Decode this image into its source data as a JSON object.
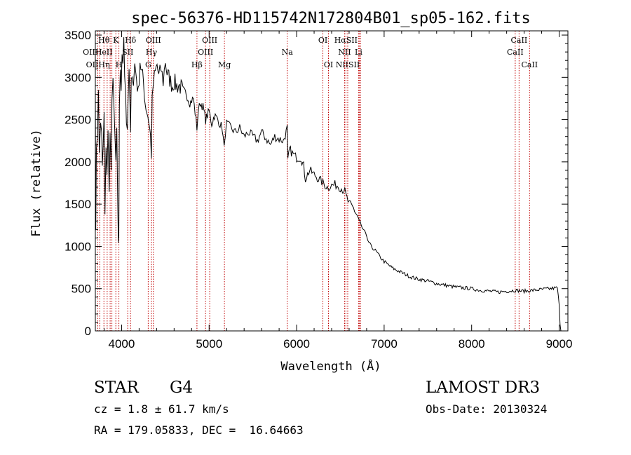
{
  "chart_data": {
    "type": "line",
    "title": "spec-56376-HD115742N172804B01_sp05-162.fits",
    "xlabel": "Wavelength (Å)",
    "ylabel": "Flux (relative)",
    "xlim": [
      3700,
      9100
    ],
    "ylim": [
      0,
      3550
    ],
    "xticks": [
      4000,
      5000,
      6000,
      7000,
      8000,
      9000
    ],
    "yticks": [
      0,
      500,
      1000,
      1500,
      2000,
      2500,
      3000,
      3500
    ],
    "series": [
      {
        "name": "spectrum",
        "x": [
          3700,
          3705,
          3712,
          3725,
          3735,
          3745,
          3760,
          3772,
          3780,
          3790,
          3800,
          3810,
          3822,
          3832,
          3845,
          3858,
          3868,
          3880,
          3890,
          3902,
          3915,
          3925,
          3935,
          3945,
          3955,
          3963,
          3968,
          3975,
          3985,
          3995,
          4005,
          4015,
          4025,
          4035,
          4045,
          4055,
          4065,
          4075,
          4085,
          4095,
          4102,
          4110,
          4120,
          4135,
          4150,
          4170,
          4190,
          4210,
          4230,
          4250,
          4270,
          4290,
          4310,
          4330,
          4340,
          4350,
          4365,
          4385,
          4405,
          4425,
          4450,
          4475,
          4500,
          4520,
          4540,
          4560,
          4580,
          4600,
          4630,
          4660,
          4700,
          4740,
          4780,
          4820,
          4850,
          4861,
          4875,
          4900,
          4930,
          4960,
          5000,
          5030,
          5060,
          5100,
          5150,
          5172,
          5185,
          5200,
          5250,
          5300,
          5350,
          5400,
          5450,
          5500,
          5550,
          5600,
          5650,
          5700,
          5750,
          5800,
          5850,
          5880,
          5893,
          5900,
          5920,
          5950,
          6000,
          6050,
          6080,
          6100,
          6150,
          6200,
          6250,
          6300,
          6350,
          6400,
          6450,
          6500,
          6550,
          6563,
          6600,
          6650,
          6700,
          6750,
          6800,
          6850,
          6900,
          6950,
          7000,
          7100,
          7200,
          7300,
          7400,
          7500,
          7600,
          7700,
          7800,
          7900,
          8000,
          8100,
          8200,
          8300,
          8400,
          8500,
          8600,
          8700,
          8800,
          8900,
          8980,
          9000,
          9010,
          9020
        ],
        "y": [
          2900,
          1100,
          2200,
          2400,
          2800,
          2100,
          2500,
          2300,
          1900,
          2200,
          2550,
          1350,
          2100,
          1900,
          2400,
          1600,
          2300,
          2000,
          2700,
          3000,
          2500,
          2200,
          2100,
          2400,
          1500,
          1000,
          1100,
          2650,
          3000,
          2750,
          3300,
          3200,
          3400,
          3050,
          2900,
          2500,
          2400,
          2800,
          3000,
          2700,
          2300,
          2900,
          3100,
          2950,
          3150,
          3000,
          2800,
          3200,
          3050,
          2950,
          2700,
          2600,
          2500,
          2300,
          2100,
          2700,
          2950,
          3050,
          3150,
          3000,
          3100,
          2950,
          3200,
          3050,
          3000,
          2950,
          2900,
          2950,
          2900,
          2900,
          2850,
          2800,
          2700,
          2750,
          2500,
          2400,
          2600,
          2700,
          2650,
          2500,
          2600,
          2450,
          2550,
          2500,
          2400,
          2150,
          2350,
          2450,
          2400,
          2350,
          2400,
          2300,
          2350,
          2300,
          2250,
          2350,
          2280,
          2200,
          2300,
          2270,
          2250,
          2350,
          2400,
          2000,
          2150,
          2100,
          2050,
          2050,
          1950,
          1800,
          1900,
          1850,
          1800,
          1750,
          1700,
          1720,
          1730,
          1700,
          1650,
          1600,
          1500,
          1450,
          1350,
          1200,
          1100,
          1000,
          950,
          880,
          820,
          740,
          690,
          640,
          610,
          590,
          560,
          540,
          520,
          510,
          500,
          480,
          470,
          460,
          470,
          480,
          470,
          480,
          490,
          500,
          510,
          300,
          100,
          0
        ]
      }
    ],
    "lines": [
      {
        "name": "Hθ",
        "wavelength": 3798,
        "row": 0
      },
      {
        "name": "K",
        "wavelength": 3934,
        "row": 0
      },
      {
        "name": "Hδ",
        "wavelength": 4102,
        "row": 0
      },
      {
        "name": "OIII",
        "wavelength": 4363,
        "row": 0
      },
      {
        "name": "OIII",
        "wavelength": 5007,
        "row": 0
      },
      {
        "name": "OI",
        "wavelength": 6300,
        "row": 0
      },
      {
        "name": "HαSII",
        "wavelength": 6563,
        "row": 0
      },
      {
        "name": "CaII",
        "wavelength": 8542,
        "row": 0
      },
      {
        "name": "OIIHeII",
        "wavelength": 3727,
        "row": 1
      },
      {
        "name": "SII",
        "wavelength": 4070,
        "row": 1
      },
      {
        "name": "Hγ",
        "wavelength": 4341,
        "row": 1
      },
      {
        "name": "OIII",
        "wavelength": 4959,
        "row": 1
      },
      {
        "name": "Na",
        "wavelength": 5893,
        "row": 1
      },
      {
        "name": "NII",
        "wavelength": 6548,
        "row": 1
      },
      {
        "name": "Li",
        "wavelength": 6708,
        "row": 1
      },
      {
        "name": "CaII",
        "wavelength": 8498,
        "row": 1
      },
      {
        "name": "OIIHη",
        "wavelength": 3729,
        "row": 2
      },
      {
        "name": "H",
        "wavelength": 3969,
        "row": 2
      },
      {
        "name": "G",
        "wavelength": 4304,
        "row": 2
      },
      {
        "name": "Hβ",
        "wavelength": 4861,
        "row": 2
      },
      {
        "name": "Mg",
        "wavelength": 5175,
        "row": 2
      },
      {
        "name": "OI",
        "wavelength": 6364,
        "row": 2
      },
      {
        "name": "NIISII",
        "wavelength": 6584,
        "row": 2
      },
      {
        "name": "CaII",
        "wavelength": 8662,
        "row": 2
      }
    ],
    "marker_wavelengths": [
      3727,
      3750,
      3798,
      3835,
      3869,
      3889,
      3934,
      3969,
      4070,
      4102,
      4304,
      4341,
      4363,
      4861,
      4959,
      5007,
      5175,
      5893,
      6300,
      6364,
      6548,
      6563,
      6584,
      6708,
      6717,
      6731,
      8498,
      8542,
      8662
    ]
  },
  "info": {
    "class": "STAR",
    "subclass": "G4",
    "survey": "LAMOST DR3",
    "cz": "cz = 1.8 ± 61.7 km/s",
    "obsdate": "Obs-Date: 20130324",
    "radec": "RA = 179.05833, DEC =  16.64663"
  }
}
